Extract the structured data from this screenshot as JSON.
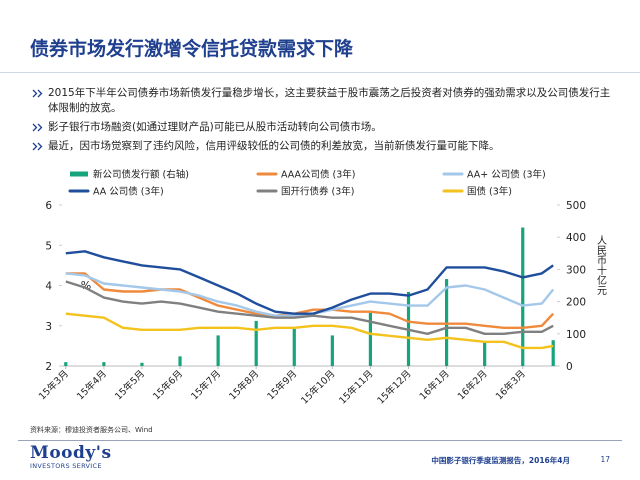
{
  "title": "债券市场发行激增令信托贷款需求下降",
  "bullets": [
    "2015年下半年公司债券市场新债发行量稳步增长，这主要获益于股市震荡之后投资者对债券的强劲需求以及公司债发行主体限制的放宽。",
    "影子银行市场融资(如通过理财产品)可能已从股市活动转向公司债市场。",
    "最近，因市场觉察到了违约风险，信用评级较低的公司债的利差放宽，当前新债发行量可能下降。"
  ],
  "chart_data": {
    "type": "line",
    "y_label": "%",
    "y2_label": "人民币十亿元",
    "xlim": [
      -0.1,
      12.9
    ],
    "xticks": [
      {
        "value": 0,
        "label": "15年3月"
      },
      {
        "value": 1,
        "label": "15年4月"
      },
      {
        "value": 2,
        "label": "15年5月"
      },
      {
        "value": 3,
        "label": "15年6月"
      },
      {
        "value": 4,
        "label": "15年7月"
      },
      {
        "value": 5,
        "label": "15年8月"
      },
      {
        "value": 6,
        "label": "15年9月"
      },
      {
        "value": 7,
        "label": "15年10月"
      },
      {
        "value": 8,
        "label": "15年11月"
      },
      {
        "value": 9,
        "label": "15年12月"
      },
      {
        "value": 10,
        "label": "16年1月"
      },
      {
        "value": 11,
        "label": "16年2月"
      },
      {
        "value": 12,
        "label": "16年3月"
      }
    ],
    "ylim": [
      2,
      6
    ],
    "yticks": [
      2,
      3,
      4,
      5,
      6
    ],
    "y2lim": [
      0,
      500
    ],
    "y2ticks": [
      0,
      100,
      200,
      300,
      400,
      500
    ],
    "x": [
      0,
      0.5,
      1,
      1.5,
      2,
      2.5,
      3,
      3.5,
      4,
      4.5,
      5,
      5.5,
      6,
      6.5,
      7,
      7.5,
      8,
      8.5,
      9,
      9.5,
      10,
      10.5,
      11,
      11.5,
      12,
      12.5,
      12.8
    ],
    "series": [
      {
        "name": "新公司债发行额 (右轴)",
        "type": "bar",
        "axis": "y2",
        "color": "#16a47c",
        "x": [
          0,
          1,
          2,
          3,
          4,
          5,
          6,
          7,
          8,
          9,
          10,
          11,
          12,
          12.8
        ],
        "values": [
          12,
          12,
          10,
          30,
          95,
          140,
          115,
          95,
          165,
          230,
          270,
          75,
          430,
          80
        ]
      },
      {
        "name": "AAA公司债 (3年)",
        "type": "line",
        "color": "#ef8a3c",
        "values": [
          4.3,
          4.3,
          3.9,
          3.85,
          3.85,
          3.9,
          3.9,
          3.7,
          3.5,
          3.4,
          3.3,
          3.25,
          3.3,
          3.4,
          3.4,
          3.35,
          3.35,
          3.3,
          3.1,
          3.05,
          3.05,
          3.05,
          3.0,
          2.95,
          2.95,
          3.0,
          3.3
        ]
      },
      {
        "name": "AA+ 公司债 (3年)",
        "type": "line",
        "color": "#a4c8ea",
        "values": [
          4.3,
          4.25,
          4.05,
          4.0,
          3.95,
          3.9,
          3.85,
          3.75,
          3.6,
          3.5,
          3.35,
          3.25,
          3.25,
          3.3,
          3.4,
          3.5,
          3.6,
          3.55,
          3.5,
          3.5,
          3.95,
          4.0,
          3.9,
          3.7,
          3.5,
          3.55,
          3.9
        ]
      },
      {
        "name": "AA 公司债 (3年)",
        "type": "line",
        "color": "#1f4e9c",
        "values": [
          4.8,
          4.85,
          4.7,
          4.6,
          4.5,
          4.45,
          4.4,
          4.2,
          4.0,
          3.8,
          3.55,
          3.35,
          3.3,
          3.3,
          3.45,
          3.65,
          3.8,
          3.8,
          3.75,
          3.9,
          4.45,
          4.45,
          4.45,
          4.35,
          4.2,
          4.3,
          4.5
        ]
      },
      {
        "name": "国开行债券 (3年)",
        "type": "line",
        "color": "#808080",
        "values": [
          4.1,
          3.95,
          3.7,
          3.6,
          3.55,
          3.6,
          3.55,
          3.45,
          3.35,
          3.3,
          3.25,
          3.2,
          3.2,
          3.25,
          3.2,
          3.2,
          3.1,
          3.0,
          2.9,
          2.8,
          2.95,
          2.95,
          2.8,
          2.8,
          2.85,
          2.85,
          3.0
        ]
      },
      {
        "name": "国债 (3年)",
        "type": "line",
        "color": "#f4c21c",
        "values": [
          3.3,
          3.25,
          3.2,
          2.95,
          2.9,
          2.9,
          2.9,
          2.95,
          2.95,
          2.95,
          2.9,
          2.95,
          2.95,
          3.0,
          3.0,
          2.95,
          2.8,
          2.75,
          2.7,
          2.65,
          2.7,
          2.65,
          2.6,
          2.6,
          2.45,
          2.45,
          2.5
        ]
      }
    ]
  },
  "footer": {
    "source": "资料来源：穆迪投资者服务公司、Wind",
    "logo_main": "Moody's",
    "logo_sub": "INVESTORS SERVICE",
    "report": "中国影子银行季度监测报告，2016年4月",
    "page": "17"
  }
}
